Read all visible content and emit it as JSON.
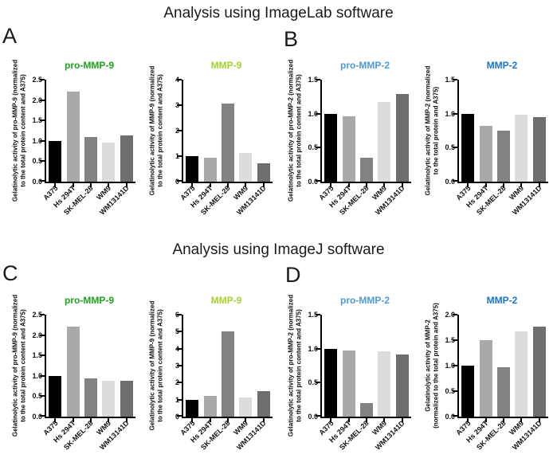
{
  "figure": {
    "section_titles": {
      "imagelab": "Analysis using ImageLab software",
      "imagej": "Analysis using ImageJ software"
    },
    "panel_labels": {
      "a": "A",
      "b": "B",
      "c": "C",
      "d": "D"
    }
  },
  "categories": [
    "A375",
    "Hs 294T",
    "SK-MEL-28",
    "WM9",
    "WM13141D"
  ],
  "bar_colors": [
    "#000000",
    "#a9a9a9",
    "#828282",
    "#dcdcdc",
    "#6e6e6e"
  ],
  "chart_data": [
    {
      "panel": "A",
      "software": "ImageLab",
      "type": "bar",
      "title": "pro-MMP-9",
      "title_color": "#1ba51b",
      "ylabel_lines": [
        "Gelatinolytic activity of pro-MMP-9 (normalized",
        "to the total protein content and A375)"
      ],
      "categories": [
        "A375",
        "Hs 294T",
        "SK-MEL-28",
        "WM9",
        "WM13141D"
      ],
      "values": [
        1.0,
        2.2,
        1.1,
        0.95,
        1.13
      ],
      "ylim": [
        0,
        2.5
      ],
      "yticks": [
        "0.0",
        "0.5",
        "1.0",
        "1.5",
        "2.0",
        "2.5"
      ]
    },
    {
      "panel": "A",
      "software": "ImageLab",
      "type": "bar",
      "title": "MMP-9",
      "title_color": "#a6d32e",
      "ylabel_lines": [
        "Gelatinolytic activity of MMP-9 (normalized",
        "to the total protein content and A375)"
      ],
      "categories": [
        "A375",
        "Hs 294T",
        "SK-MEL-28",
        "WM9",
        "WM13141D"
      ],
      "values": [
        1.0,
        0.93,
        3.05,
        1.12,
        0.71
      ],
      "ylim": [
        0,
        4
      ],
      "yticks": [
        "0",
        "1",
        "2",
        "3",
        "4"
      ]
    },
    {
      "panel": "B",
      "software": "ImageLab",
      "type": "bar",
      "title": "pro-MMP-2",
      "title_color": "#4d9ad9",
      "ylabel_lines": [
        "Gelatinolytic activity of pro-MMP-2 (normalized",
        "to the total protein content and A375)"
      ],
      "categories": [
        "A375",
        "Hs 294T",
        "SK-MEL-28",
        "WM9",
        "WM13141D"
      ],
      "values": [
        1.0,
        0.96,
        0.35,
        1.17,
        1.29
      ],
      "ylim": [
        0,
        1.5
      ],
      "yticks": [
        "0.0",
        "0.5",
        "1.0",
        "1.5"
      ]
    },
    {
      "panel": "B",
      "software": "ImageLab",
      "type": "bar",
      "title": "MMP-2",
      "title_color": "#1874d2",
      "ylabel_lines": [
        "Gelatinolytic activity of MMP-2 (normalized",
        "to the total protein and A375)"
      ],
      "categories": [
        "A375",
        "Hs 294T",
        "SK-MEL-28",
        "WM9",
        "WM13141D"
      ],
      "values": [
        1.0,
        0.82,
        0.75,
        0.98,
        0.95
      ],
      "ylim": [
        0,
        1.5
      ],
      "yticks": [
        "0.0",
        "0.5",
        "1.0",
        "1.5"
      ]
    },
    {
      "panel": "C",
      "software": "ImageJ",
      "type": "bar",
      "title": "pro-MMP-9",
      "title_color": "#1ba51b",
      "ylabel_lines": [
        "Gelatinolytic activity of pro-MMP-9 (normalized",
        "to the total protein content and A375)"
      ],
      "categories": [
        "A375",
        "Hs 294T",
        "SK-MEL-28",
        "WM9",
        "WM13141D"
      ],
      "values": [
        1.0,
        2.2,
        0.93,
        0.88,
        0.87
      ],
      "ylim": [
        0,
        2.5
      ],
      "yticks": [
        "0.0",
        "0.5",
        "1.0",
        "1.5",
        "2.0",
        "2.5"
      ]
    },
    {
      "panel": "C",
      "software": "ImageJ",
      "type": "bar",
      "title": "MMP-9",
      "title_color": "#a6d32e",
      "ylabel_lines": [
        "Gelatinolytic activity of MMP-9 (normalized",
        "to the total protein content and A375)"
      ],
      "categories": [
        "A375",
        "Hs 294T",
        "SK-MEL-28",
        "WM9",
        "WM13141D"
      ],
      "values": [
        1.0,
        1.2,
        5.0,
        1.12,
        1.48
      ],
      "ylim": [
        0,
        6
      ],
      "yticks": [
        "0",
        "1",
        "2",
        "3",
        "4",
        "5",
        "6"
      ]
    },
    {
      "panel": "D",
      "software": "ImageJ",
      "type": "bar",
      "title": "pro-MMP-2",
      "title_color": "#4d9ad9",
      "ylabel_lines": [
        "Gelatinolytic activity of pro-MMP-2 (normalized",
        "to the total protein content and A375)"
      ],
      "categories": [
        "A375",
        "Hs 294T",
        "SK-MEL-28",
        "WM9",
        "WM13141D"
      ],
      "values": [
        1.0,
        0.97,
        0.2,
        0.96,
        0.91
      ],
      "ylim": [
        0,
        1.5
      ],
      "yticks": [
        "0.0",
        "0.5",
        "1.0",
        "1.5"
      ]
    },
    {
      "panel": "D",
      "software": "ImageJ",
      "type": "bar",
      "title": "MMP-2",
      "title_color": "#1874d2",
      "ylabel_lines": [
        "Gelatinolytic activity of MMP-2",
        "(normalized to the total protein and A375)"
      ],
      "categories": [
        "A375",
        "Hs 294T",
        "SK-MEL-28",
        "WM9",
        "WM13141D"
      ],
      "values": [
        1.0,
        1.5,
        0.97,
        1.67,
        1.77
      ],
      "ylim": [
        0,
        2.0
      ],
      "yticks": [
        "0.0",
        "0.5",
        "1.0",
        "1.5",
        "2.0"
      ]
    }
  ]
}
